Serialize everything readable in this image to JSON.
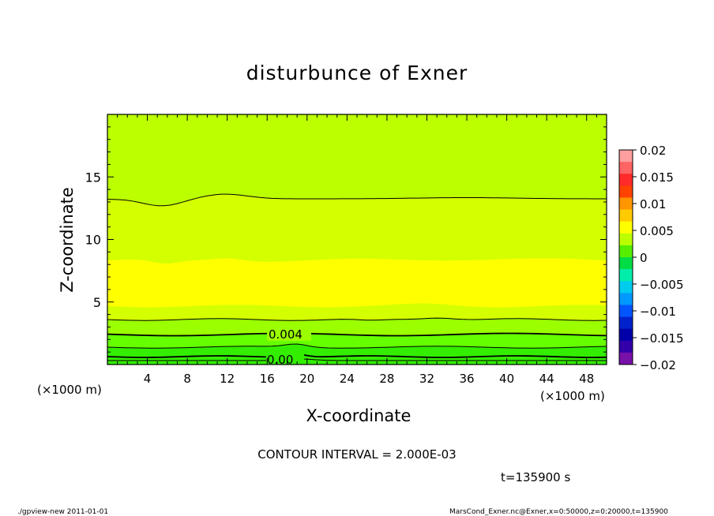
{
  "chart_data": {
    "type": "contour",
    "title": "disturbunce of Exner",
    "xlabel": "X-coordinate",
    "ylabel": "Z-coordinate",
    "x_unit_label": "(×1000 m)",
    "x_ticks": [
      4,
      8,
      12,
      16,
      20,
      24,
      28,
      32,
      36,
      40,
      44,
      48
    ],
    "y_ticks": [
      5,
      10,
      15
    ],
    "xlim": [
      0,
      50
    ],
    "ylim": [
      0,
      20
    ],
    "contour_labels": [
      "0.004",
      "0.00"
    ],
    "contour_interval_text": "CONTOUR INTERVAL = 2.000E-03",
    "time_text": "t=135900 s",
    "colorbar": {
      "ticks": [
        "0.02",
        "0.015",
        "0.01",
        "0.005",
        "0",
        "−0.005",
        "−0.01",
        "−0.015",
        "−0.02"
      ],
      "colors": [
        "#ff9e9e",
        "#ff6464",
        "#ff2a2a",
        "#ff4200",
        "#ff9600",
        "#ffca00",
        "#ffff00",
        "#bbff00",
        "#55ee00",
        "#00dd44",
        "#00eeaa",
        "#00ccee",
        "#0099ff",
        "#0055ff",
        "#0022cc",
        "#0000aa",
        "#3300aa",
        "#7711aa"
      ]
    },
    "band_colors": {
      "top": "#bbff00",
      "upper": "#d4ff00",
      "middle": "#ffff00",
      "lower": "#d4ff00",
      "bottom1": "#9bff00",
      "bottom2": "#66ff00",
      "bottom3": "#33ee00"
    }
  },
  "footer": {
    "left": "./gpview-new   2011-01-01",
    "right": "MarsCond_Exner.nc@Exner,x=0:50000,z=0:20000,t=135900"
  }
}
